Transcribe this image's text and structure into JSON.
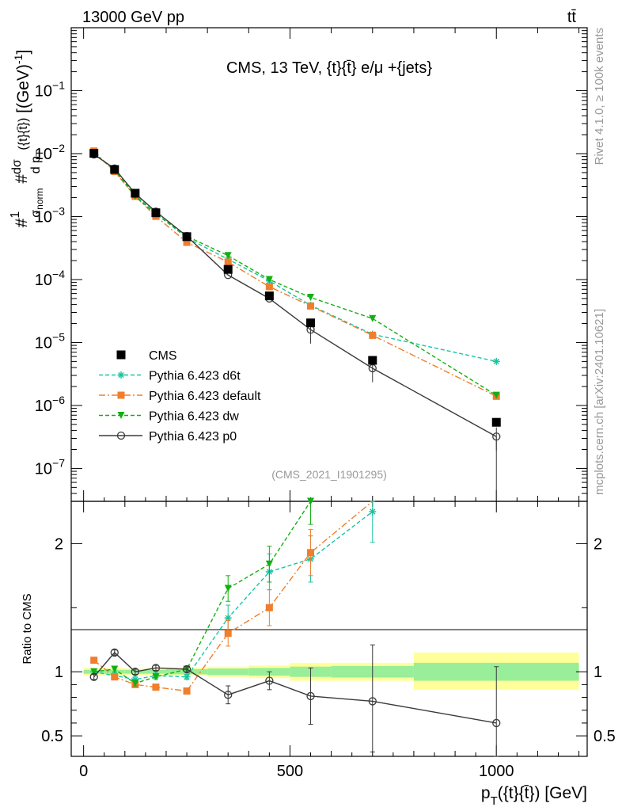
{
  "header": {
    "energy_label": "13000 GeV pp",
    "process_label": "tt̄",
    "analysis_title": "CMS, 13 TeV, {t}{t̄} e/μ +{jets}",
    "analysis_id": "(CMS_2021_I1901295)",
    "side_rivet": "Rivet 4.1.0, ≥ 100k events",
    "side_mcplots": "mcplots.cern.ch [arXiv:2401.10621]"
  },
  "chart_data": [
    {
      "id": "main",
      "type": "scatter",
      "title": "CMS, 13 TeV, {t}{t̄} e/μ +{jets}",
      "ylabel": "#1/σ_norm #dσ/dp_T({t}{t̄}) [(GeV)^-1]",
      "xlabel": "p_T({t}{t̄}) [GeV]",
      "xlim": [
        -30,
        1220
      ],
      "ylim": [
        3e-08,
        1.0
      ],
      "yscale": "log",
      "y_ticks": [
        {
          "value": 1e-07,
          "label": "10",
          "exp": "−7"
        },
        {
          "value": 1e-06,
          "label": "10",
          "exp": "−6"
        },
        {
          "value": 1e-05,
          "label": "10",
          "exp": "−5"
        },
        {
          "value": 0.0001,
          "label": "10",
          "exp": "−4"
        },
        {
          "value": 0.001,
          "label": "10",
          "exp": "−3"
        },
        {
          "value": 0.01,
          "label": "10",
          "exp": "−2"
        },
        {
          "value": 0.1,
          "label": "10",
          "exp": "−1"
        }
      ],
      "data_series": {
        "name": "CMS",
        "color": "#000000",
        "x": [
          25,
          75,
          125,
          175,
          250,
          350,
          450,
          550,
          700,
          1000
        ],
        "y": [
          0.0101,
          0.0056,
          0.00235,
          0.00115,
          0.00048,
          0.000145,
          5.5e-05,
          2.05e-05,
          5.2e-06,
          5.4e-07
        ]
      },
      "series": [
        {
          "name": "Pythia 6.423 d6t",
          "color": "#19c4a0",
          "style": "dashed",
          "marker": "star",
          "x": [
            25,
            75,
            125,
            175,
            250,
            350,
            450,
            550,
            700,
            1000
          ],
          "y": [
            0.0102,
            0.0054,
            0.0022,
            0.00112,
            0.00046,
            0.00021,
            9.5e-05,
            3.9e-05,
            1.35e-05,
            5e-06
          ]
        },
        {
          "name": "Pythia 6.423 default",
          "color": "#f07e2d",
          "style": "dashdot",
          "marker": "square",
          "x": [
            25,
            75,
            125,
            175,
            250,
            350,
            450,
            550,
            700,
            1000
          ],
          "y": [
            0.011,
            0.0052,
            0.0021,
            0.00101,
            0.00039,
            0.00019,
            7.7e-05,
            3.8e-05,
            1.3e-05,
            1.4e-06
          ]
        },
        {
          "name": "Pythia 6.423 dw",
          "color": "#11b011",
          "style": "dashed",
          "marker": "triangle-down",
          "x": [
            25,
            75,
            125,
            175,
            250,
            350,
            450,
            550,
            700,
            1000
          ],
          "y": [
            0.0101,
            0.0055,
            0.0021,
            0.0011,
            0.000485,
            0.00024,
            0.0001,
            5.2e-05,
            2.4e-05,
            1.45e-06
          ]
        },
        {
          "name": "Pythia 6.423 p0",
          "color": "#3a3a3a",
          "style": "solid",
          "marker": "circle-open",
          "x": [
            25,
            75,
            125,
            175,
            250,
            350,
            450,
            550,
            700,
            1000
          ],
          "y": [
            0.0097,
            0.0058,
            0.00232,
            0.0012,
            0.00049,
            0.000118,
            5e-05,
            1.6e-05,
            3.9e-06,
            3.2e-07
          ]
        }
      ],
      "legend_position": "lower-left"
    },
    {
      "id": "ratio",
      "type": "scatter",
      "ylabel": "Ratio to CMS",
      "xlabel": "p_T({t}{t̄}) [GeV]",
      "xlim": [
        -30,
        1220
      ],
      "ylim": [
        0.34,
        2.33
      ],
      "x_ticks": [
        0,
        500,
        1000
      ],
      "x_tick_labels": [
        "0",
        "500",
        "1000"
      ],
      "y_ticks": [
        0.5,
        1,
        2
      ],
      "y_tick_labels": [
        "0.5",
        "1",
        "2"
      ],
      "uncertainty_bands": {
        "bins": [
          [
            0,
            50
          ],
          [
            50,
            100
          ],
          [
            100,
            150
          ],
          [
            150,
            200
          ],
          [
            200,
            300
          ],
          [
            300,
            400
          ],
          [
            400,
            500
          ],
          [
            500,
            600
          ],
          [
            600,
            800
          ],
          [
            800,
            1200
          ]
        ],
        "stat_low": [
          0.985,
          0.985,
          0.985,
          0.985,
          0.98,
          0.975,
          0.97,
          0.96,
          0.955,
          0.93
        ],
        "stat_high": [
          1.015,
          1.015,
          1.015,
          1.015,
          1.02,
          1.025,
          1.03,
          1.04,
          1.045,
          1.07
        ],
        "total_low": [
          0.97,
          0.97,
          0.975,
          0.975,
          0.97,
          0.96,
          0.95,
          0.93,
          0.93,
          0.86
        ],
        "total_high": [
          1.03,
          1.03,
          1.025,
          1.025,
          1.03,
          1.04,
          1.05,
          1.07,
          1.07,
          1.15
        ]
      },
      "series": [
        {
          "name": "Pythia 6.423 d6t",
          "color": "#19c4a0",
          "x": [
            25,
            75,
            125,
            175,
            250,
            350,
            450,
            550,
            700
          ],
          "y": [
            1.0,
            0.97,
            0.94,
            0.97,
            0.96,
            1.42,
            1.78,
            1.88,
            2.25
          ]
        },
        {
          "name": "Pythia 6.423 default",
          "color": "#f07e2d",
          "x": [
            25,
            75,
            125,
            175,
            250,
            350,
            450,
            550,
            700
          ],
          "y": [
            1.09,
            0.96,
            0.9,
            0.88,
            0.85,
            1.3,
            1.5,
            1.93,
            2.35
          ]
        },
        {
          "name": "Pythia 6.423 dw",
          "color": "#11b011",
          "x": [
            25,
            75,
            125,
            175,
            250,
            350,
            450,
            550
          ],
          "y": [
            1.0,
            1.02,
            0.91,
            0.96,
            1.02,
            1.65,
            1.84,
            2.33
          ]
        },
        {
          "name": "Pythia 6.423 p0",
          "color": "#3a3a3a",
          "x": [
            25,
            75,
            125,
            175,
            250,
            350,
            450,
            550,
            700,
            1000
          ],
          "y": [
            0.96,
            1.15,
            1.0,
            1.03,
            1.02,
            0.82,
            0.93,
            0.81,
            0.77,
            0.6
          ]
        }
      ]
    }
  ]
}
